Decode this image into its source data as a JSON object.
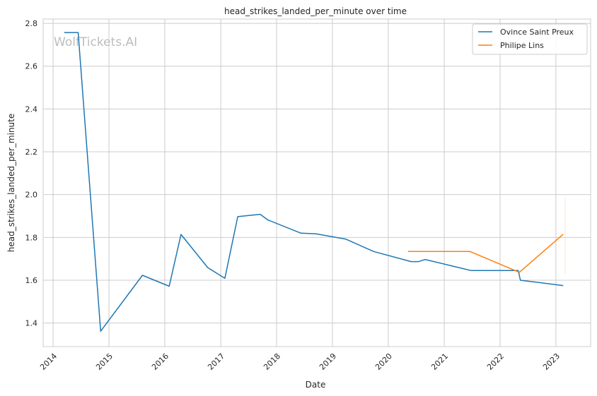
{
  "chart_data": {
    "type": "line",
    "title": "head_strikes_landed_per_minute over time",
    "xlabel": "Date",
    "ylabel": "head_strikes_landed_per_minute",
    "watermark": "WolfTickets.AI",
    "grid": true,
    "legend_position": "top-right",
    "x_ticks": [
      "2014",
      "2015",
      "2016",
      "2017",
      "2018",
      "2019",
      "2020",
      "2021",
      "2022",
      "2023"
    ],
    "y_ticks": [
      "1.4",
      "1.6",
      "1.8",
      "2.0",
      "2.2",
      "2.4",
      "2.6",
      "2.8"
    ],
    "ylim": [
      1.29,
      2.82
    ],
    "xlim": [
      "2013-10-28",
      "2023-08-16"
    ],
    "series": [
      {
        "name": "Ovince Saint Preux",
        "color": "#1f77b4",
        "points": [
          {
            "x": "2014-03-15",
            "y": 2.757
          },
          {
            "x": "2014-06-14",
            "y": 2.757
          },
          {
            "x": "2014-11-08",
            "y": 1.362
          },
          {
            "x": "2015-08-08",
            "y": 1.623
          },
          {
            "x": "2016-01-30",
            "y": 1.572
          },
          {
            "x": "2016-04-16",
            "y": 1.814
          },
          {
            "x": "2016-10-08",
            "y": 1.659
          },
          {
            "x": "2017-01-28",
            "y": 1.609
          },
          {
            "x": "2017-04-22",
            "y": 1.897
          },
          {
            "x": "2017-09-16",
            "y": 1.908
          },
          {
            "x": "2017-11-04",
            "y": 1.882
          },
          {
            "x": "2018-06-09",
            "y": 1.82
          },
          {
            "x": "2018-09-15",
            "y": 1.817
          },
          {
            "x": "2019-03-30",
            "y": 1.792
          },
          {
            "x": "2019-09-28",
            "y": 1.734
          },
          {
            "x": "2020-05-30",
            "y": 1.687
          },
          {
            "x": "2020-07-18",
            "y": 1.687
          },
          {
            "x": "2020-08-29",
            "y": 1.697
          },
          {
            "x": "2021-06-26",
            "y": 1.645
          },
          {
            "x": "2022-04-30",
            "y": 1.645
          },
          {
            "x": "2022-05-14",
            "y": 1.6
          },
          {
            "x": "2023-02-18",
            "y": 1.575
          }
        ]
      },
      {
        "name": "Philipe Lins",
        "color": "#ff7f0e",
        "points": [
          {
            "x": "2020-05-09",
            "y": 1.734
          },
          {
            "x": "2021-06-19",
            "y": 1.734
          },
          {
            "x": "2022-05-07",
            "y": 1.637
          },
          {
            "x": "2023-02-18",
            "y": 1.815
          }
        ]
      }
    ]
  }
}
